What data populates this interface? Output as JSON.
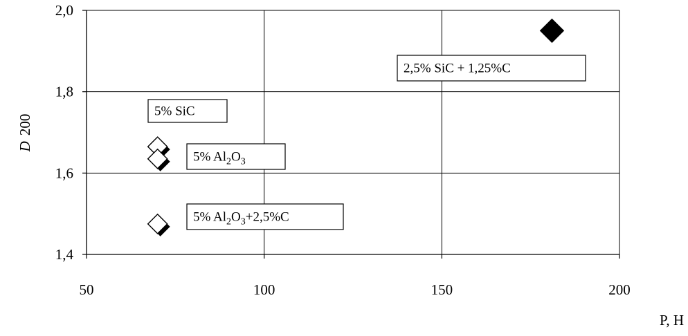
{
  "chart_data": {
    "type": "scatter",
    "title": "",
    "xlabel": "P, H",
    "ylabel_italic": "D",
    "ylabel_rest": "200",
    "xlim": [
      50,
      200
    ],
    "ylim": [
      1.4,
      2.0
    ],
    "xticks": [
      50,
      100,
      150,
      200
    ],
    "xtick_labels": [
      "50",
      "100",
      "150",
      "200"
    ],
    "yticks": [
      1.4,
      1.6,
      1.8,
      2.0
    ],
    "ytick_labels": [
      "1,4",
      "1,6",
      "1,8",
      "2,0"
    ],
    "grid": true,
    "points": [
      {
        "x": 70,
        "y": 1.665,
        "marker": "open-diamond"
      },
      {
        "x": 70,
        "y": 1.635,
        "marker": "open-diamond"
      },
      {
        "x": 70,
        "y": 1.475,
        "marker": "open-diamond"
      },
      {
        "x": 181,
        "y": 1.95,
        "marker": "filled-diamond"
      }
    ],
    "annotations": [
      {
        "id": "sic5",
        "parts": [
          {
            "t": "5% SiC"
          }
        ]
      },
      {
        "id": "al2o3",
        "parts": [
          {
            "t": "5% Al"
          },
          {
            "t": "2",
            "sub": true
          },
          {
            "t": "O"
          },
          {
            "t": "3",
            "sub": true
          }
        ]
      },
      {
        "id": "al2o3c",
        "parts": [
          {
            "t": "5% Al"
          },
          {
            "t": "2",
            "sub": true
          },
          {
            "t": "O"
          },
          {
            "t": "3",
            "sub": true
          },
          {
            "t": "+2,5%C"
          }
        ]
      },
      {
        "id": "sicc",
        "parts": [
          {
            "t": "2,5% SiC + 1,25%C"
          }
        ]
      }
    ]
  }
}
